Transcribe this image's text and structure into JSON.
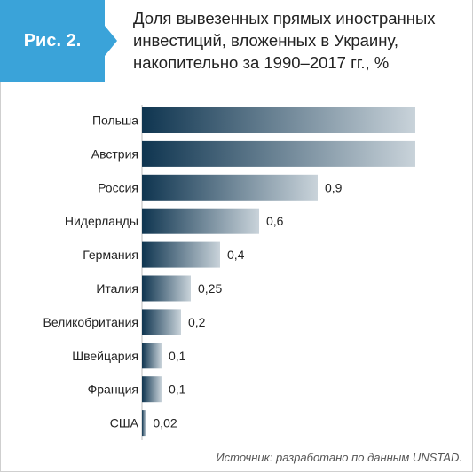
{
  "badge": {
    "label": "Рис. 2."
  },
  "title": "Доля вывезенных прямых иностранных инвестиций, вложенных в Украину, накопительно за 1990–2017 гг., %",
  "source": "Источник: разработано по данным UNSTAD.",
  "colors": {
    "accent": "#3aa3d9",
    "bar_dark": "#0f3550",
    "bar_light": "#c9d3da"
  },
  "chart_data": {
    "type": "bar",
    "orientation": "horizontal",
    "title": "Доля вывезенных прямых иностранных инвестиций, вложенных в Украину, накопительно за 1990–2017 гг., %",
    "categories": [
      "Польша",
      "Австрия",
      "Россия",
      "Нидерланды",
      "Германия",
      "Италия",
      "Великобритания",
      "Швейцария",
      "Франция",
      "США"
    ],
    "values": [
      1.4,
      1.4,
      0.9,
      0.6,
      0.4,
      0.25,
      0.2,
      0.1,
      0.1,
      0.02
    ],
    "value_labels": [
      "",
      "",
      "0,9",
      "0,6",
      "0,4",
      "0,25",
      "0,2",
      "0,1",
      "0,1",
      "0,02"
    ],
    "xlim": [
      0,
      1.4
    ],
    "grid": false,
    "legend": "none"
  }
}
